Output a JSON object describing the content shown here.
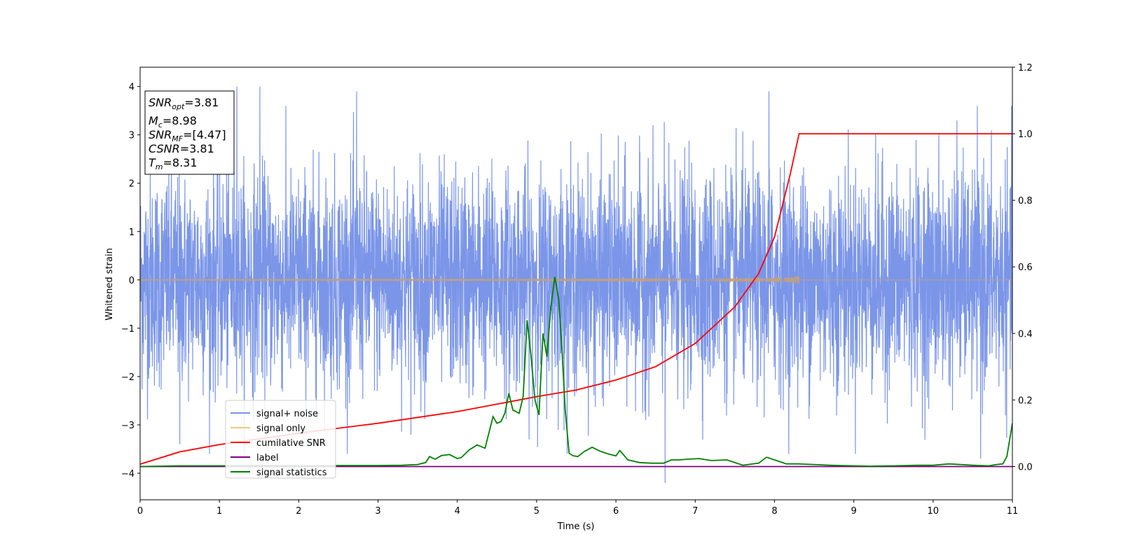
{
  "chart_data": {
    "type": "line",
    "title": "",
    "xlabel": "Time (s)",
    "ylabel": "Whitened strain",
    "xlim": [
      0,
      11
    ],
    "ylim": [
      -4.55,
      4.4
    ],
    "y2lim": [
      -0.1,
      1.2
    ],
    "x_ticks": [
      0,
      1,
      2,
      3,
      4,
      5,
      6,
      7,
      8,
      9,
      10,
      11
    ],
    "y_ticks": [
      -4,
      -3,
      -2,
      -1,
      0,
      1,
      2,
      3,
      4
    ],
    "y2_ticks": [
      "0.0",
      "0.2",
      "0.4",
      "0.6",
      "0.8",
      "1.0",
      "1.2"
    ],
    "grid": false,
    "legend_position": "lower-left",
    "annotation": {
      "snr_opt": {
        "symbol": "SNR",
        "sub": "opt",
        "value": "=3.81"
      },
      "mc": {
        "symbol": "M",
        "sub": "c",
        "value": "=8.98"
      },
      "snr_mf": {
        "symbol": "SNR",
        "sub": "MF",
        "value": "=[4.47]"
      },
      "csnr": {
        "symbol": "CSNR",
        "value": "=3.81"
      },
      "tm": {
        "symbol": "T",
        "sub": "m",
        "value": "=8.31"
      }
    },
    "series": [
      {
        "name": "signal+ noise",
        "axis": "left",
        "color": "#7b96e8",
        "kind": "noise",
        "std": 1.1,
        "peaks": [
          [
            0.5,
            -3.4
          ],
          [
            1.22,
            4.0
          ],
          [
            1.51,
            4.0
          ],
          [
            2.73,
            3.9
          ],
          [
            6.62,
            -4.2
          ],
          [
            7.93,
            3.9
          ],
          [
            10.3,
            3.3
          ],
          [
            10.6,
            -3.7
          ]
        ]
      },
      {
        "name": "signal only",
        "axis": "left",
        "color": "#f5c77a",
        "kind": "chirp",
        "t_merge": 8.31,
        "peak_amplitude": 0.58
      },
      {
        "name": "cumilative SNR",
        "axis": "right",
        "color": "#ff0000",
        "x": [
          0,
          0.5,
          1,
          2,
          3,
          4,
          5,
          5.5,
          6,
          6.5,
          7,
          7.5,
          7.8,
          8.0,
          8.2,
          8.31,
          8.32,
          11
        ],
        "y": [
          0.007,
          0.044,
          0.066,
          0.1,
          0.13,
          0.165,
          0.21,
          0.23,
          0.26,
          0.3,
          0.37,
          0.48,
          0.58,
          0.69,
          0.88,
          1.0,
          1.0,
          1.0
        ]
      },
      {
        "name": "label",
        "axis": "right",
        "color": "#800080",
        "x": [
          0,
          11
        ],
        "y": [
          0,
          0
        ]
      },
      {
        "name": "signal statistics",
        "axis": "right",
        "color": "#008000",
        "x": [
          0,
          0.5,
          1,
          1.5,
          2,
          2.5,
          3,
          3.3,
          3.5,
          3.6,
          3.65,
          3.72,
          3.8,
          3.9,
          4.0,
          4.05,
          4.15,
          4.25,
          4.35,
          4.45,
          4.5,
          4.55,
          4.6,
          4.65,
          4.7,
          4.78,
          4.83,
          4.88,
          4.93,
          4.98,
          5.03,
          5.08,
          5.13,
          5.18,
          5.23,
          5.28,
          5.32,
          5.36,
          5.41,
          5.46,
          5.52,
          5.6,
          5.7,
          5.8,
          5.9,
          6.0,
          6.05,
          6.15,
          6.3,
          6.45,
          6.6,
          6.7,
          6.8,
          6.9,
          7.05,
          7.2,
          7.4,
          7.6,
          7.8,
          7.9,
          8.0,
          8.15,
          8.3,
          8.5,
          8.7,
          9.0,
          9.2,
          9.5,
          9.8,
          10.0,
          10.2,
          10.5,
          10.7,
          10.8,
          10.88,
          10.93,
          11
        ],
        "y": [
          0.0,
          0.002,
          0.002,
          0.003,
          0.002,
          0.003,
          0.003,
          0.004,
          0.006,
          0.012,
          0.03,
          0.022,
          0.033,
          0.036,
          0.024,
          0.027,
          0.05,
          0.065,
          0.055,
          0.15,
          0.13,
          0.135,
          0.16,
          0.22,
          0.17,
          0.16,
          0.21,
          0.44,
          0.33,
          0.2,
          0.155,
          0.4,
          0.33,
          0.48,
          0.57,
          0.5,
          0.35,
          0.17,
          0.04,
          0.032,
          0.03,
          0.045,
          0.058,
          0.046,
          0.038,
          0.032,
          0.048,
          0.02,
          0.012,
          0.01,
          0.01,
          0.02,
          0.02,
          0.022,
          0.024,
          0.018,
          0.02,
          0.004,
          0.01,
          0.028,
          0.02,
          0.008,
          0.008,
          0.006,
          0.004,
          0.002,
          0.001,
          0.002,
          0.004,
          0.004,
          0.008,
          0.004,
          0.002,
          0.006,
          0.008,
          0.03,
          0.13
        ]
      }
    ]
  }
}
